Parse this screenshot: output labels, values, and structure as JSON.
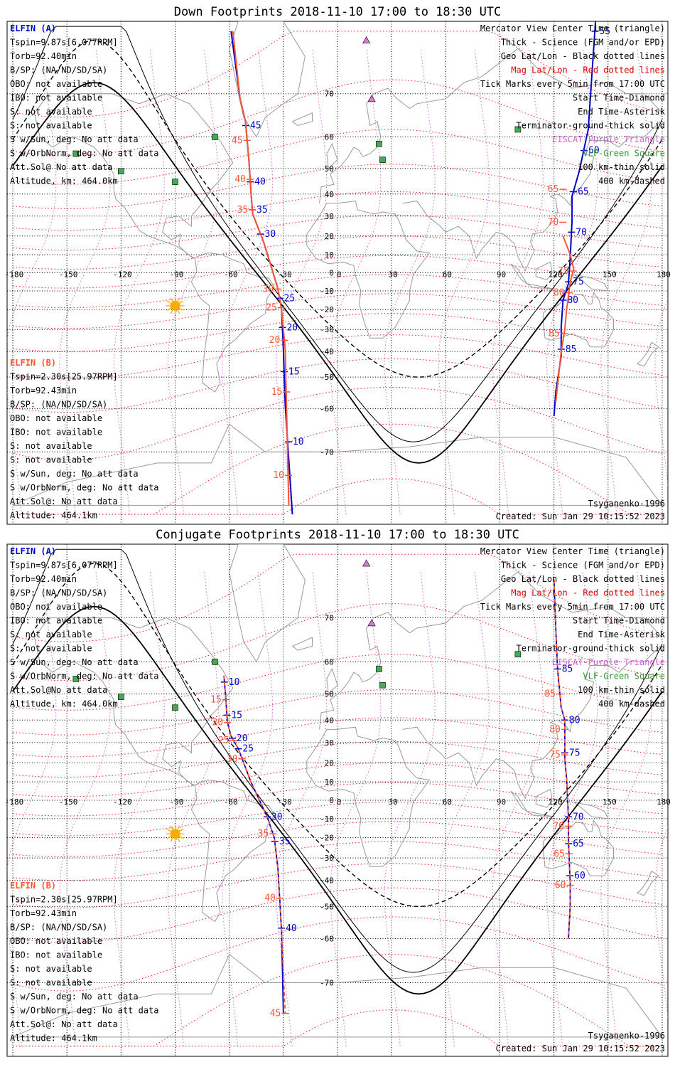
{
  "chart_data": [
    {
      "type": "line",
      "title": "Down Footprints 2018-11-10 17:00 to 18:30 UTC",
      "x_tick_labels": [
        "-180",
        "-150",
        "-120",
        "-90",
        "-60",
        "-30",
        "0",
        "30",
        "60",
        "90",
        "120",
        "150",
        "180"
      ],
      "y_tick_labels": [
        "70",
        "60",
        "50",
        "40",
        "30",
        "20",
        "10",
        "0",
        "-10",
        "-20",
        "-30",
        "-40",
        "-50",
        "-60",
        "-70"
      ],
      "xlim": [
        -180,
        180
      ],
      "ylim": [
        -80,
        80
      ],
      "projection": "Mercator",
      "grid": true,
      "info_a": {
        "title": "ELFIN (A)",
        "lines": [
          "Tspin=9.87s[6.077RPM]",
          "Torb=92.40min",
          "B/SP: (NA/ND/SD/SA)",
          "OBO: not available",
          "IBO: not available",
          "S: not available",
          "S: not available",
          "S w/Sun, deg: No att data",
          "S w/OrbNorm, deg: No att data",
          "Att.Sol@ No att data",
          "Altitude, km: 464.0km"
        ]
      },
      "info_b": {
        "title": "ELFIN (B)",
        "lines": [
          "Tspin=2.30s[25.97RPM]",
          "Torb=92.43min",
          "B/SP: (NA/ND/SD/SA)",
          "OBO: not available",
          "IBO: not available",
          "S: not available",
          "S: not available",
          "S w/Sun, deg: No att data",
          "S w/OrbNorm, deg: No att data",
          "Att.Sol@: No att data",
          "Altitude: 464.1km"
        ]
      },
      "legend": [
        {
          "text": "Mercator View Center Time (triangle)",
          "color": "#000000"
        },
        {
          "text": "Thick - Science (FGM and/or EPD)",
          "color": "#000000"
        },
        {
          "text": "Geo Lat/Lon - Black dotted lines",
          "color": "#000000"
        },
        {
          "text": "Mag Lat/Lon - Red dotted lines",
          "color": "#dd0000"
        },
        {
          "text": "Tick Marks every 5min from 17:00 UTC",
          "color": "#000000"
        },
        {
          "text": "Start Time-Diamond",
          "color": "#000000"
        },
        {
          "text": "End Time-Asterisk",
          "color": "#000000"
        },
        {
          "text": "Terminator-ground-thick solid",
          "color": "#000000"
        },
        {
          "text": "EISCAT-Purple Triangle",
          "color": "#cc66cc"
        },
        {
          "text": "VLF-Green Square",
          "color": "#339933"
        },
        {
          "text": "100 km-thin solid",
          "color": "#000000"
        },
        {
          "text": "400 km-dashed",
          "color": "#000000"
        }
      ],
      "model": "Tsyganenko-1996",
      "created": "Created: Sun Jan 29 10:15:52 2023",
      "series": [
        {
          "name": "ELFIN (A)",
          "color": "#0000cc",
          "lon": [
            -59,
            -54,
            -51,
            -49,
            -48,
            -47,
            -41,
            -36,
            -33,
            -31,
            -30,
            -29,
            -25
          ],
          "lat": [
            79,
            69,
            64,
            52,
            41,
            31,
            17,
            1,
            -9,
            -20,
            -39,
            -59,
            -79
          ],
          "tick_minutes": [
            10,
            15,
            20,
            25,
            30,
            35,
            40,
            45
          ],
          "tick_lat": [
            -68,
            -48,
            -29,
            -14,
            21,
            33,
            45,
            63
          ]
        },
        {
          "name": "ELFIN (B)",
          "color": "#ff5533",
          "lon": [
            -58,
            -54,
            -51,
            -49,
            -48,
            -47,
            -41,
            -36,
            -33,
            -31,
            -29,
            -27
          ],
          "lat": [
            79,
            69,
            64,
            52,
            41,
            31,
            17,
            1,
            -9,
            -20,
            -39,
            -78
          ],
          "tick_minutes": [
            10,
            15,
            20,
            25,
            30,
            35,
            40,
            45
          ],
          "tick_lat": [
            -74,
            -55,
            -35,
            -19,
            -9,
            33,
            46,
            59
          ]
        },
        {
          "name": "ELFIN (A)",
          "color": "#0000cc",
          "lon": [
            143,
            139,
            134,
            130,
            130,
            129,
            128,
            125,
            124,
            124,
            121,
            120
          ],
          "lat": [
            80,
            62,
            49,
            39,
            28,
            8,
            -6,
            -15,
            -29,
            -42,
            -55,
            -62
          ],
          "tick_minutes": [
            55,
            60,
            65,
            70,
            75,
            80,
            85
          ],
          "tick_lat": [
            79,
            56,
            41,
            22,
            -5,
            -15,
            -39
          ]
        },
        {
          "name": "ELFIN (B)",
          "color": "#ff5533",
          "lon": [
            125,
            129,
            131,
            129,
            128,
            127,
            126,
            124,
            121
          ],
          "lat": [
            20,
            10,
            2,
            -5,
            -13,
            -20,
            -30,
            -40,
            -58
          ],
          "tick_minutes": [
            65,
            70,
            75,
            80,
            85
          ],
          "tick_lat": [
            42,
            27,
            1,
            -11,
            -32
          ]
        }
      ]
    },
    {
      "type": "line",
      "title": "Conjugate Footprints 2018-11-10 17:00 to 18:30 UTC",
      "x_tick_labels": [
        "-180",
        "-150",
        "-120",
        "-90",
        "-60",
        "-30",
        "0",
        "30",
        "60",
        "90",
        "120",
        "150",
        "180"
      ],
      "y_tick_labels": [
        "70",
        "60",
        "50",
        "40",
        "30",
        "20",
        "10",
        "0",
        "-10",
        "-20",
        "-30",
        "-40",
        "-50",
        "-60",
        "-70"
      ],
      "xlim": [
        -180,
        180
      ],
      "ylim": [
        -80,
        80
      ],
      "projection": "Mercator",
      "grid": true,
      "info_a": {
        "title": "ELFIN (A)",
        "lines": [
          "Tspin=9.87s[6.077RPM]",
          "Torb=92.40min",
          "B/SP: (NA/ND/SD/SA)",
          "OBO: not available",
          "IBO: not available",
          "S: not available",
          "S: not available",
          "S w/Sun, deg: No att data",
          "S w/OrbNorm, deg: No att data",
          "Att.Sol@No att data",
          "Altitude, km: 464.0km"
        ]
      },
      "info_b": {
        "title": "ELFIN (B)",
        "lines": [
          "Tspin=2.30s[25.97RPM]",
          "Torb=92.43min",
          "B/SP: (NA/ND/SD/SA)",
          "OBO: not available",
          "IBO: not available",
          "S: not available",
          "S: not available",
          "S w/Sun, deg: No att data",
          "S w/OrbNorm, deg: No att data",
          "Att.Sol@: No att data",
          "Altitude: 464.1km"
        ]
      },
      "legend": [
        {
          "text": "Mercator View Center Time (triangle)",
          "color": "#000000"
        },
        {
          "text": "Thick - Science (FGM and/or EPD)",
          "color": "#000000"
        },
        {
          "text": "Geo Lat/Lon - Black dotted lines",
          "color": "#000000"
        },
        {
          "text": "Mag Lat/Lon - Red dotted lines",
          "color": "#dd0000"
        },
        {
          "text": "Tick Marks every 5min from 17:00 UTC",
          "color": "#000000"
        },
        {
          "text": "Start Time-Diamond",
          "color": "#000000"
        },
        {
          "text": "End Time-Asterisk",
          "color": "#000000"
        },
        {
          "text": "Terminator-ground-thick solid",
          "color": "#000000"
        },
        {
          "text": "EISCAT-Purple Triangle",
          "color": "#cc66cc"
        },
        {
          "text": "VLF-Green Square",
          "color": "#339933"
        },
        {
          "text": "100 km-thin solid",
          "color": "#000000"
        },
        {
          "text": "400 km-dashed",
          "color": "#000000"
        }
      ],
      "model": "Tsyganenko-1996",
      "created": "Created: Sun Jan 29 10:15:52 2023",
      "series": [
        {
          "name": "ELFIN (A)",
          "color": "#0000cc",
          "dashed": true,
          "lon": [
            -63,
            -62,
            -61,
            -59,
            -55,
            -48,
            -39,
            -35,
            -33,
            -31,
            -30
          ],
          "lat": [
            56,
            49,
            39,
            33,
            27,
            10,
            -9,
            -20,
            -35,
            -58,
            -75
          ],
          "tick_minutes": [
            10,
            15,
            20,
            25,
            30,
            35,
            40
          ],
          "tick_lat": [
            54,
            42,
            32,
            27,
            -9,
            -22,
            -57
          ]
        },
        {
          "name": "ELFIN (B)",
          "color": "#ff5533",
          "dashed": true,
          "lon": [
            -63,
            -62,
            -61,
            -59,
            -55,
            -48,
            -39,
            -35,
            -33,
            -31,
            -29
          ],
          "lat": [
            56,
            49,
            39,
            33,
            27,
            10,
            -9,
            -20,
            -35,
            -58,
            -75
          ],
          "tick_minutes": [
            15,
            20,
            25,
            30,
            35,
            40,
            45
          ],
          "tick_lat": [
            48,
            39,
            31,
            22,
            -18,
            -47,
            -75
          ]
        },
        {
          "name": "ELFIN (A)",
          "color": "#0000cc",
          "dashed": true,
          "lon": [
            120,
            121,
            122,
            124,
            126,
            126,
            127,
            128,
            128,
            129,
            129,
            128
          ],
          "lat": [
            76,
            68,
            58,
            45,
            40,
            22,
            12,
            -9,
            -21,
            -41,
            -50,
            -60
          ],
          "tick_minutes": [
            60,
            65,
            70,
            75,
            80,
            85
          ],
          "tick_lat": [
            -38,
            -23,
            -9,
            25,
            40,
            58
          ]
        },
        {
          "name": "ELFIN (B)",
          "color": "#ff5533",
          "dashed": true,
          "lon": [
            120,
            121,
            122,
            124,
            126,
            126,
            127,
            128,
            128,
            129,
            129,
            128
          ],
          "lat": [
            76,
            68,
            58,
            45,
            40,
            22,
            12,
            -9,
            -21,
            -41,
            -50,
            -60
          ],
          "tick_minutes": [
            60,
            65,
            70,
            75,
            80,
            85
          ],
          "tick_lat": [
            -42,
            -28,
            -14,
            24,
            36,
            50
          ]
        }
      ]
    }
  ]
}
